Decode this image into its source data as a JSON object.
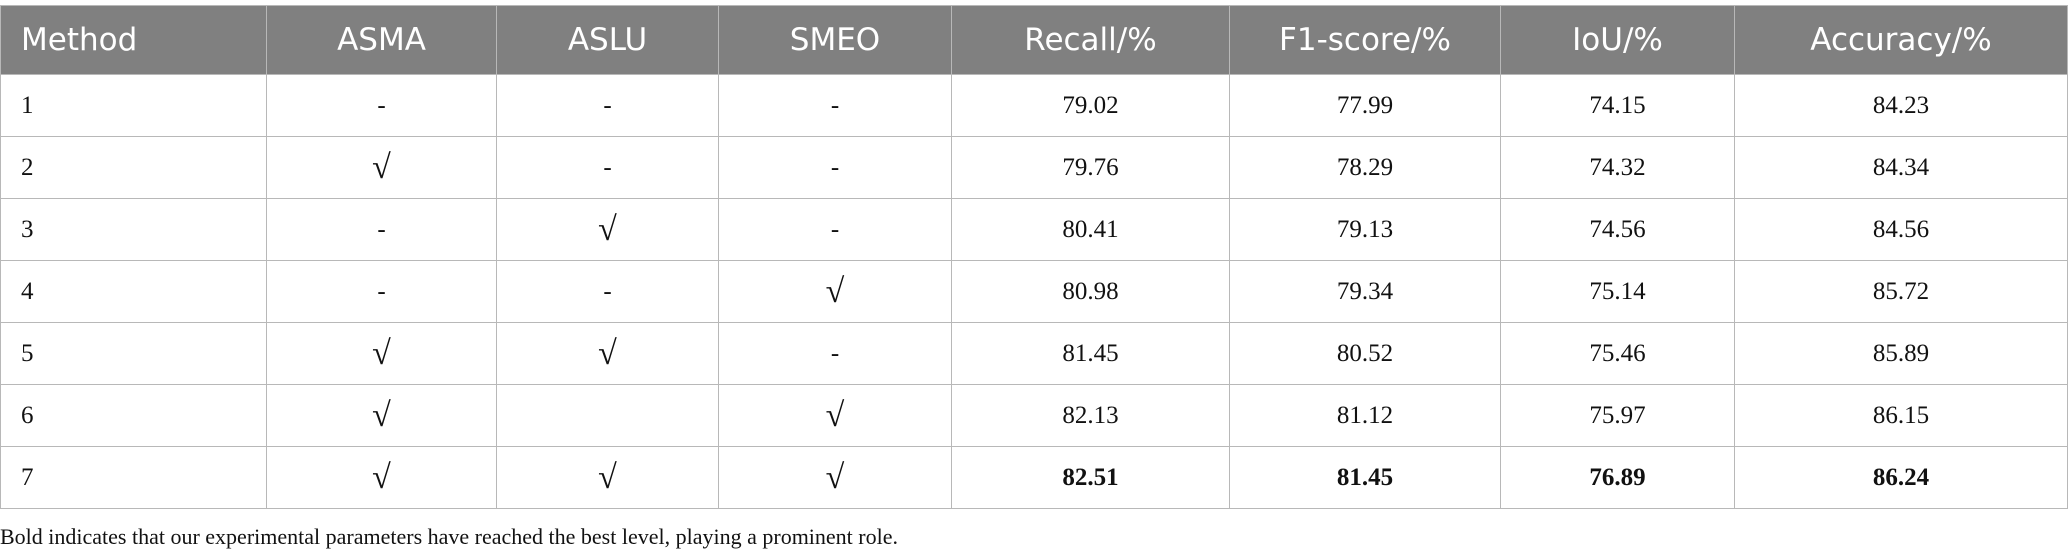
{
  "table": {
    "header": [
      "Method",
      "ASMA",
      "ASLU",
      "SMEO",
      "Recall/%",
      "F1-score/%",
      "IoU/%",
      "Accuracy/%"
    ],
    "rows": [
      [
        "1",
        "-",
        "-",
        "-",
        "79.02",
        "77.99",
        "74.15",
        "84.23"
      ],
      [
        "2",
        "√",
        "-",
        "-",
        "79.76",
        "78.29",
        "74.32",
        "84.34"
      ],
      [
        "3",
        "-",
        "√",
        "-",
        "80.41",
        "79.13",
        "74.56",
        "84.56"
      ],
      [
        "4",
        "-",
        "-",
        "√",
        "80.98",
        "79.34",
        "75.14",
        "85.72"
      ],
      [
        "5",
        "√",
        "√",
        "-",
        "81.45",
        "80.52",
        "75.46",
        "85.89"
      ],
      [
        "6",
        "√",
        null,
        "√",
        "82.13",
        "81.12",
        "75.97",
        "86.15"
      ],
      [
        "7",
        "√",
        "√",
        "√",
        "82.51",
        "81.45",
        "76.89",
        "86.24"
      ]
    ],
    "bold_rows": [
      6
    ]
  },
  "footnote": "Bold indicates that our experimental parameters have reached the best level, playing a prominent role."
}
